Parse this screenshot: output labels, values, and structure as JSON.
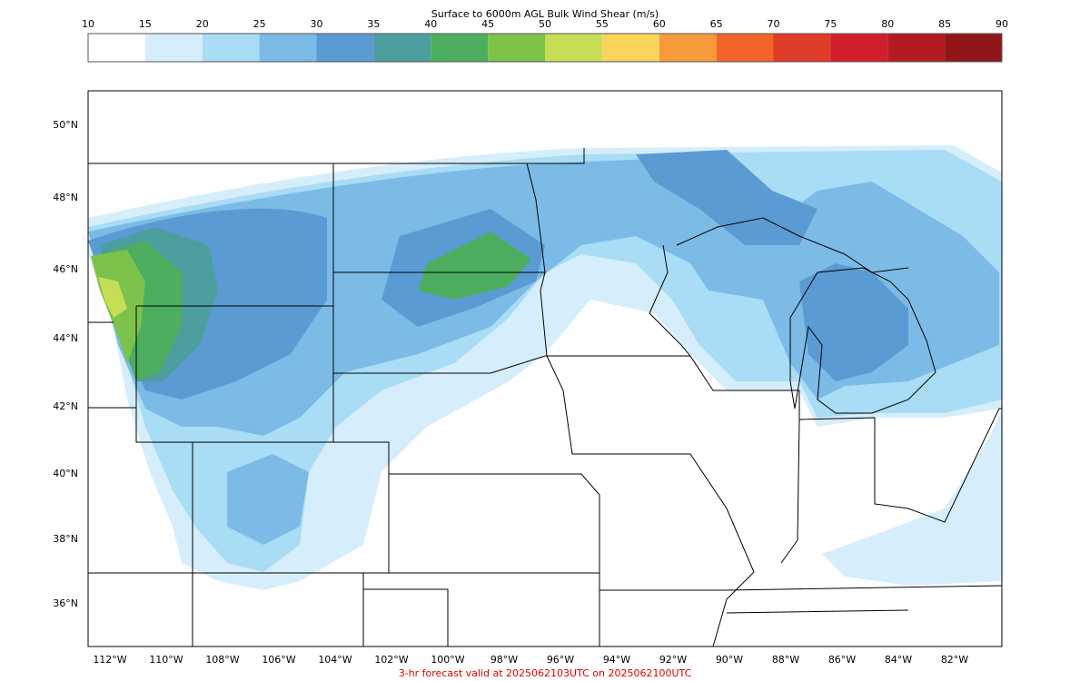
{
  "colorbar": {
    "title": "Surface to 6000m AGL Bulk Wind Shear (m/s)",
    "ticks": [
      10,
      15,
      20,
      25,
      30,
      35,
      40,
      45,
      50,
      55,
      60,
      65,
      70,
      75,
      80,
      85,
      90
    ],
    "colors": [
      "#ffffff",
      "#d6eefb",
      "#a9dcf5",
      "#7bbbe6",
      "#5a9bd4",
      "#4c9e9f",
      "#4cae5e",
      "#7cc24b",
      "#c6dd56",
      "#f9d45a",
      "#f79a3c",
      "#f26428",
      "#e03c2a",
      "#d21f2b",
      "#b31b22",
      "#921619"
    ]
  },
  "map": {
    "lat_labels": [
      "50°N",
      "48°N",
      "46°N",
      "44°N",
      "42°N",
      "40°N",
      "38°N",
      "36°N"
    ],
    "lon_labels": [
      "112°W",
      "110°W",
      "108°W",
      "106°W",
      "104°W",
      "102°W",
      "100°W",
      "98°W",
      "96°W",
      "94°W",
      "92°W",
      "90°W",
      "88°W",
      "86°W",
      "84°W",
      "82°W"
    ]
  },
  "footer": "3-hr forecast valid at 2025062103UTC on 2025062100UTC"
}
